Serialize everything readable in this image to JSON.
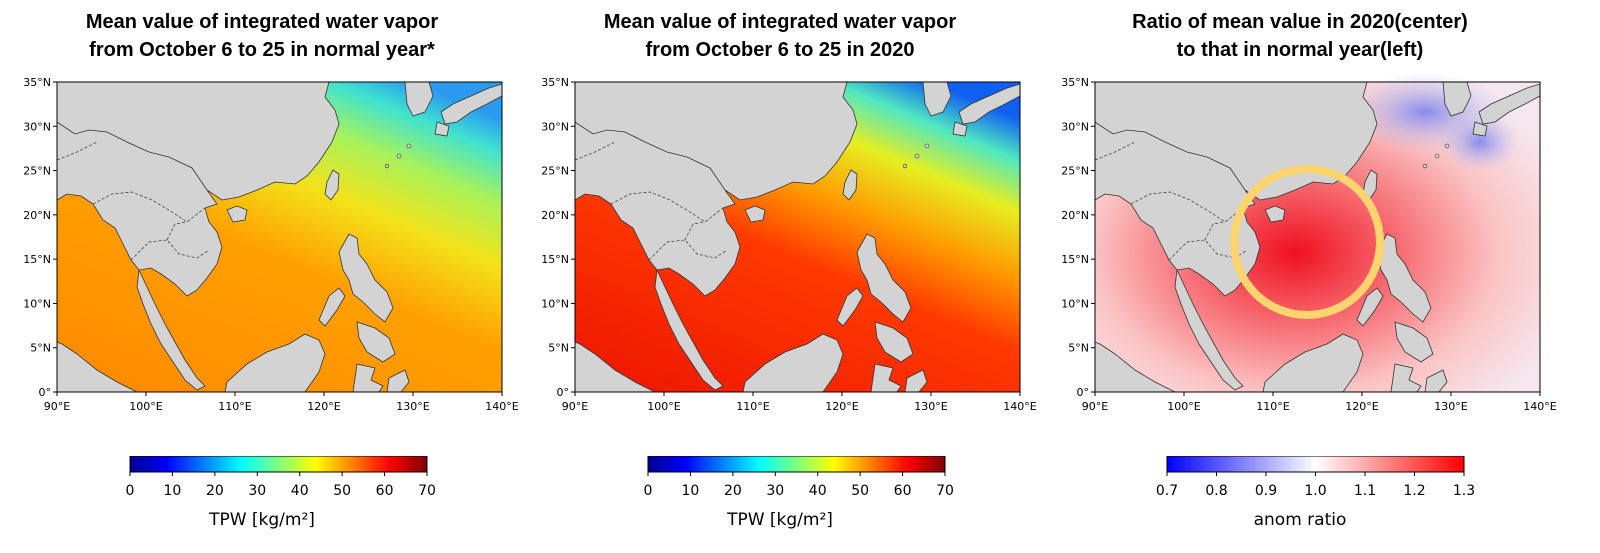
{
  "panels": [
    {
      "title_line1": "Mean value of integrated water vapor",
      "title_line2": "from October 6 to 25 in normal year*",
      "colorbar": {
        "scheme": "jet",
        "ticks": [
          "0",
          "10",
          "20",
          "30",
          "40",
          "50",
          "60",
          "70"
        ],
        "label": "TPW [kg/m²]"
      }
    },
    {
      "title_line1": "Mean value of integrated water vapor",
      "title_line2": "from October 6 to 25 in 2020",
      "colorbar": {
        "scheme": "jet",
        "ticks": [
          "0",
          "10",
          "20",
          "30",
          "40",
          "50",
          "60",
          "70"
        ],
        "label": "TPW [kg/m²]"
      }
    },
    {
      "title_line1": "Ratio of mean value in 2020(center)",
      "title_line2": "to that in  normal year(left)",
      "colorbar": {
        "scheme": "bwr",
        "ticks": [
          "0.7",
          "0.8",
          "0.9",
          "1.0",
          "1.1",
          "1.2",
          "1.3"
        ],
        "label": "anom ratio"
      },
      "highlight": {
        "shape": "circle",
        "color": "#fdd46e",
        "center_lon": 114,
        "center_lat": 16.5
      }
    }
  ],
  "map": {
    "region": "South China Sea / Western North Pacific",
    "lon_ticks": [
      "90°E",
      "100°E",
      "110°E",
      "120°E",
      "130°E",
      "140°E"
    ],
    "lat_ticks": [
      "35°N",
      "30°N",
      "25°N",
      "20°N",
      "15°N",
      "10°N",
      "5°N",
      "0°"
    ],
    "land_color": "#d3d3d3"
  }
}
